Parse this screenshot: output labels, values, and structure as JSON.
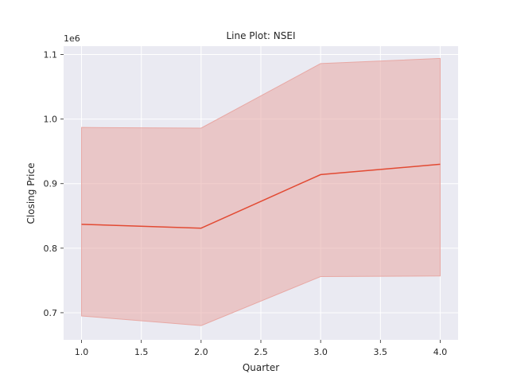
{
  "chart_data": {
    "type": "line",
    "title": "Line Plot: NSEI",
    "xlabel": "Quarter",
    "ylabel": "Closing Price",
    "y_offset_label": "1e6",
    "y_scale_factor": 1000000,
    "xlim": [
      0.85,
      4.15
    ],
    "ylim": [
      0.658,
      1.113
    ],
    "x_ticks": [
      1.0,
      1.5,
      2.0,
      2.5,
      3.0,
      3.5,
      4.0
    ],
    "x_tick_labels": [
      "1.0",
      "1.5",
      "2.0",
      "2.5",
      "3.0",
      "3.5",
      "4.0"
    ],
    "y_ticks": [
      0.7,
      0.8,
      0.9,
      1.0,
      1.1
    ],
    "y_tick_labels": [
      "0.7",
      "0.8",
      "0.9",
      "1.0",
      "1.1"
    ],
    "grid": true,
    "x": [
      1.0,
      2.0,
      3.0,
      4.0
    ],
    "series": [
      {
        "values": [
          0.837,
          0.831,
          0.914,
          0.93
        ],
        "ci_lower": [
          0.695,
          0.68,
          0.756,
          0.757
        ],
        "ci_upper": [
          0.987,
          0.986,
          1.086,
          1.094
        ],
        "color": "#e24a33",
        "band_color": "#e8a8a4"
      }
    ],
    "background_color": "#eaeaf2",
    "grid_color": "#ffffff"
  }
}
